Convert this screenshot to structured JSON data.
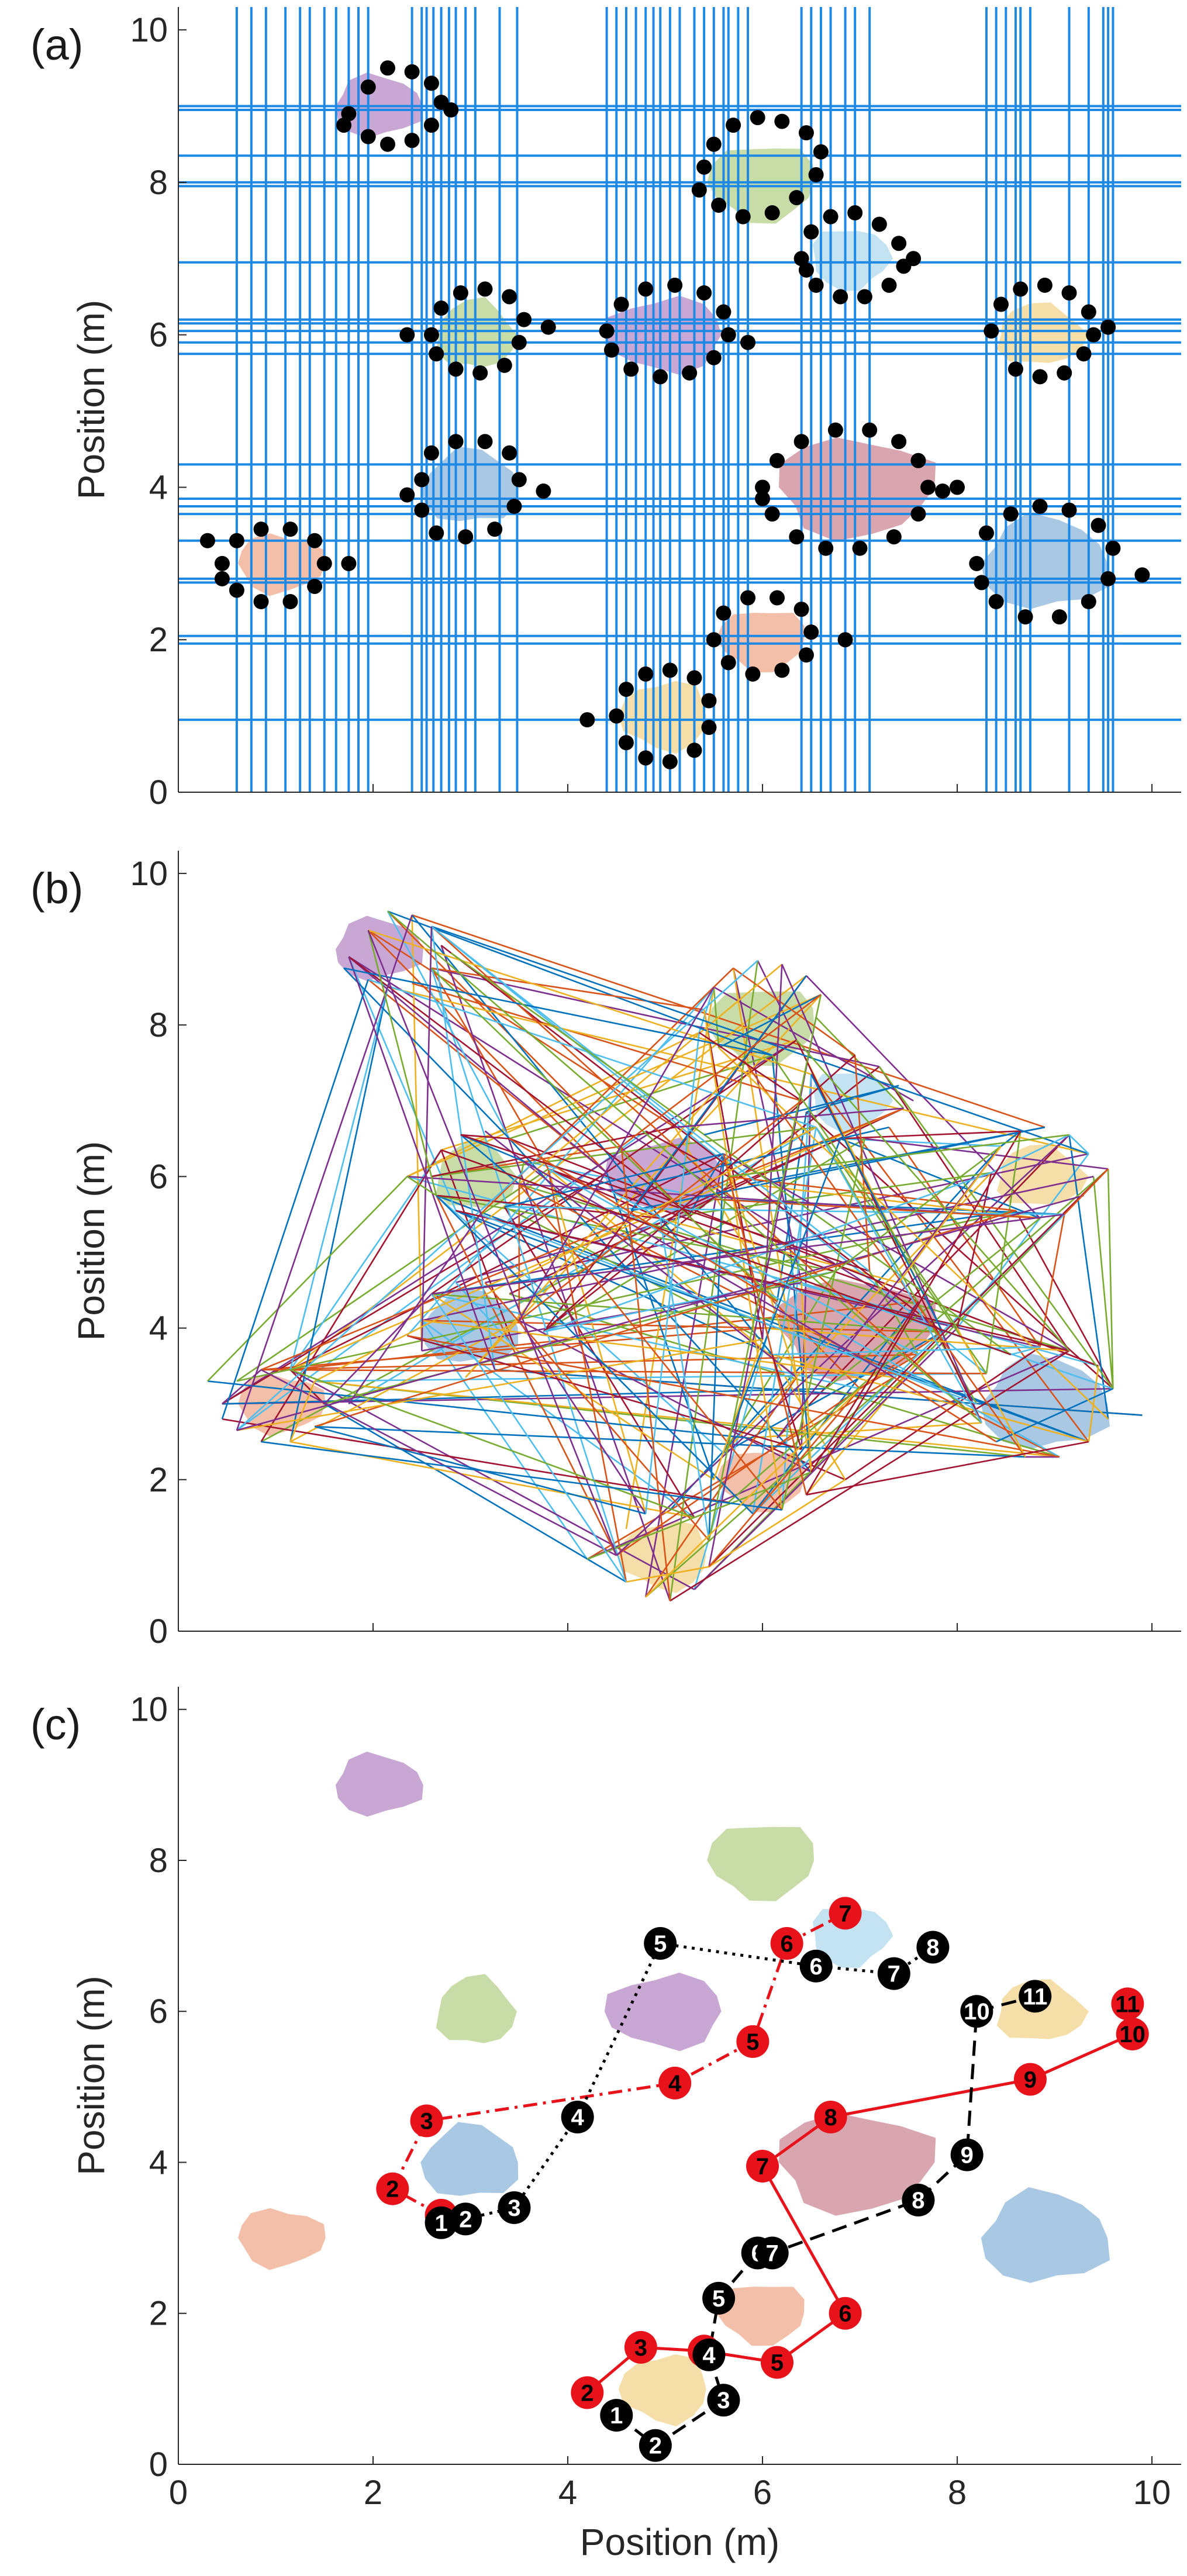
{
  "chart_data": [
    {
      "type": "scatter",
      "panel_label": "(a)",
      "xlabel": "",
      "ylabel": "Position (m)",
      "xlim": [
        0,
        10.3
      ],
      "ylim": [
        0,
        10.3
      ],
      "xticks": [
        "0",
        "2",
        "4",
        "6",
        "8",
        "10"
      ],
      "yticks": [
        "0",
        "2",
        "4",
        "6",
        "8",
        "10"
      ],
      "show_xtick_labels": false,
      "obstacles": [
        {
          "cx": 2.05,
          "cy": 9.0,
          "rx": 0.45,
          "ry": 0.4,
          "color": "#c9a7d4"
        },
        {
          "cx": 6.0,
          "cy": 8.0,
          "rx": 0.55,
          "ry": 0.5,
          "color": "#c8dca8"
        },
        {
          "cx": 6.9,
          "cy": 7.0,
          "rx": 0.4,
          "ry": 0.4,
          "color": "#c3e2f2"
        },
        {
          "cx": 3.05,
          "cy": 6.0,
          "rx": 0.4,
          "ry": 0.45,
          "color": "#c8dca8"
        },
        {
          "cx": 5.0,
          "cy": 6.0,
          "rx": 0.6,
          "ry": 0.48,
          "color": "#c9a7d4"
        },
        {
          "cx": 8.85,
          "cy": 6.0,
          "rx": 0.45,
          "ry": 0.4,
          "color": "#f6dea8"
        },
        {
          "cx": 3.0,
          "cy": 4.0,
          "rx": 0.5,
          "ry": 0.48,
          "color": "#a8c8e4"
        },
        {
          "cx": 6.95,
          "cy": 4.0,
          "rx": 0.8,
          "ry": 0.65,
          "color": "#d9a6b0"
        },
        {
          "cx": 1.05,
          "cy": 3.0,
          "rx": 0.45,
          "ry": 0.38,
          "color": "#f3bfa9"
        },
        {
          "cx": 8.9,
          "cy": 3.0,
          "rx": 0.65,
          "ry": 0.6,
          "color": "#a8c8e4"
        },
        {
          "cx": 6.0,
          "cy": 2.0,
          "rx": 0.45,
          "ry": 0.4,
          "color": "#f3bfa9"
        },
        {
          "cx": 5.0,
          "cy": 1.0,
          "rx": 0.45,
          "ry": 0.45,
          "color": "#f6dea8"
        }
      ],
      "grid_lines_x": [
        0.6,
        0.75,
        0.9,
        1.1,
        1.25,
        1.35,
        1.5,
        1.62,
        1.75,
        1.85,
        1.95,
        2.4,
        2.5,
        2.55,
        2.62,
        2.7,
        2.78,
        2.85,
        2.95,
        3.05,
        3.3,
        3.48,
        4.4,
        4.5,
        4.6,
        4.7,
        4.8,
        4.88,
        4.95,
        5.05,
        5.15,
        5.3,
        5.4,
        5.5,
        5.6,
        5.65,
        5.75,
        5.85,
        6.4,
        6.5,
        6.6,
        6.7,
        6.85,
        6.95,
        7.1,
        8.3,
        8.4,
        8.5,
        8.6,
        8.65,
        8.75,
        9.15,
        9.35,
        9.5,
        9.55,
        9.6
      ],
      "grid_lines_y": [
        0.95,
        1.95,
        2.05,
        2.75,
        2.8,
        3.3,
        3.65,
        3.75,
        3.85,
        4.3,
        5.75,
        5.9,
        6.05,
        6.15,
        6.2,
        6.95,
        7.95,
        8.0,
        8.35,
        8.95,
        9.0
      ],
      "sample_points": [
        [
          1.75,
          8.9
        ],
        [
          1.95,
          9.25
        ],
        [
          2.15,
          9.5
        ],
        [
          2.4,
          9.45
        ],
        [
          2.6,
          9.3
        ],
        [
          2.7,
          9.05
        ],
        [
          2.6,
          8.75
        ],
        [
          2.4,
          8.55
        ],
        [
          2.15,
          8.5
        ],
        [
          1.95,
          8.6
        ],
        [
          1.7,
          8.75
        ],
        [
          2.8,
          8.95
        ],
        [
          5.4,
          8.2
        ],
        [
          5.5,
          8.5
        ],
        [
          5.7,
          8.75
        ],
        [
          5.95,
          8.85
        ],
        [
          6.2,
          8.8
        ],
        [
          6.45,
          8.65
        ],
        [
          6.6,
          8.4
        ],
        [
          6.55,
          8.1
        ],
        [
          6.35,
          7.8
        ],
        [
          6.1,
          7.6
        ],
        [
          5.8,
          7.55
        ],
        [
          5.55,
          7.7
        ],
        [
          5.35,
          7.9
        ],
        [
          6.4,
          7.0
        ],
        [
          6.5,
          7.35
        ],
        [
          6.7,
          7.55
        ],
        [
          6.95,
          7.6
        ],
        [
          7.2,
          7.45
        ],
        [
          7.4,
          7.2
        ],
        [
          7.45,
          6.9
        ],
        [
          7.3,
          6.65
        ],
        [
          7.05,
          6.5
        ],
        [
          6.8,
          6.5
        ],
        [
          6.55,
          6.65
        ],
        [
          6.45,
          6.85
        ],
        [
          7.55,
          7.0
        ],
        [
          2.6,
          6.0
        ],
        [
          2.7,
          6.35
        ],
        [
          2.9,
          6.55
        ],
        [
          3.15,
          6.6
        ],
        [
          3.4,
          6.5
        ],
        [
          3.55,
          6.2
        ],
        [
          3.5,
          5.9
        ],
        [
          3.35,
          5.6
        ],
        [
          3.1,
          5.5
        ],
        [
          2.85,
          5.55
        ],
        [
          2.65,
          5.75
        ],
        [
          2.35,
          6.0
        ],
        [
          4.4,
          6.05
        ],
        [
          4.55,
          6.4
        ],
        [
          4.8,
          6.6
        ],
        [
          5.1,
          6.65
        ],
        [
          5.4,
          6.55
        ],
        [
          5.6,
          6.3
        ],
        [
          5.65,
          6.0
        ],
        [
          5.5,
          5.7
        ],
        [
          5.25,
          5.5
        ],
        [
          4.95,
          5.45
        ],
        [
          4.65,
          5.55
        ],
        [
          4.45,
          5.8
        ],
        [
          3.8,
          6.1
        ],
        [
          5.85,
          5.9
        ],
        [
          8.35,
          6.05
        ],
        [
          8.45,
          6.4
        ],
        [
          8.65,
          6.6
        ],
        [
          8.9,
          6.65
        ],
        [
          9.15,
          6.55
        ],
        [
          9.35,
          6.3
        ],
        [
          9.4,
          6.0
        ],
        [
          9.3,
          5.75
        ],
        [
          9.1,
          5.5
        ],
        [
          8.85,
          5.45
        ],
        [
          8.6,
          5.55
        ],
        [
          9.55,
          6.1
        ],
        [
          2.5,
          4.1
        ],
        [
          2.6,
          4.45
        ],
        [
          2.85,
          4.6
        ],
        [
          3.15,
          4.6
        ],
        [
          3.4,
          4.45
        ],
        [
          3.5,
          4.1
        ],
        [
          3.45,
          3.75
        ],
        [
          3.25,
          3.45
        ],
        [
          2.95,
          3.35
        ],
        [
          2.65,
          3.4
        ],
        [
          2.5,
          3.7
        ],
        [
          2.35,
          3.9
        ],
        [
          3.75,
          3.95
        ],
        [
          6.0,
          4.0
        ],
        [
          6.15,
          4.35
        ],
        [
          6.4,
          4.6
        ],
        [
          6.75,
          4.75
        ],
        [
          7.1,
          4.75
        ],
        [
          7.4,
          4.6
        ],
        [
          7.6,
          4.35
        ],
        [
          7.7,
          4.0
        ],
        [
          7.6,
          3.65
        ],
        [
          7.35,
          3.35
        ],
        [
          7.0,
          3.2
        ],
        [
          6.65,
          3.2
        ],
        [
          6.35,
          3.35
        ],
        [
          6.1,
          3.65
        ],
        [
          6.0,
          3.85
        ],
        [
          7.85,
          3.95
        ],
        [
          8.0,
          4.0
        ],
        [
          0.45,
          3.0
        ],
        [
          0.6,
          3.3
        ],
        [
          0.85,
          3.45
        ],
        [
          1.15,
          3.45
        ],
        [
          1.4,
          3.3
        ],
        [
          1.5,
          3.0
        ],
        [
          1.4,
          2.7
        ],
        [
          1.15,
          2.5
        ],
        [
          0.85,
          2.5
        ],
        [
          0.6,
          2.65
        ],
        [
          0.45,
          2.8
        ],
        [
          1.75,
          3.0
        ],
        [
          0.3,
          3.3
        ],
        [
          8.2,
          3.0
        ],
        [
          8.3,
          3.4
        ],
        [
          8.55,
          3.65
        ],
        [
          8.85,
          3.75
        ],
        [
          9.15,
          3.7
        ],
        [
          9.45,
          3.5
        ],
        [
          9.6,
          3.2
        ],
        [
          9.55,
          2.8
        ],
        [
          9.35,
          2.5
        ],
        [
          9.05,
          2.3
        ],
        [
          8.7,
          2.3
        ],
        [
          8.4,
          2.5
        ],
        [
          8.25,
          2.75
        ],
        [
          9.9,
          2.85
        ],
        [
          5.5,
          2.0
        ],
        [
          5.6,
          2.35
        ],
        [
          5.85,
          2.55
        ],
        [
          6.15,
          2.55
        ],
        [
          6.4,
          2.4
        ],
        [
          6.5,
          2.1
        ],
        [
          6.45,
          1.8
        ],
        [
          6.2,
          1.6
        ],
        [
          5.9,
          1.55
        ],
        [
          5.65,
          1.7
        ],
        [
          6.85,
          2.0
        ],
        [
          4.5,
          1.0
        ],
        [
          4.6,
          1.35
        ],
        [
          4.8,
          1.55
        ],
        [
          5.05,
          1.6
        ],
        [
          5.3,
          1.5
        ],
        [
          5.45,
          1.2
        ],
        [
          5.45,
          0.85
        ],
        [
          5.3,
          0.55
        ],
        [
          5.05,
          0.4
        ],
        [
          4.8,
          0.45
        ],
        [
          4.6,
          0.65
        ],
        [
          4.2,
          0.95
        ]
      ]
    },
    {
      "type": "line",
      "panel_label": "(b)",
      "xlabel": "",
      "ylabel": "Position (m)",
      "xlim": [
        0,
        10.3
      ],
      "ylim": [
        0,
        10.3
      ],
      "xticks": [
        "0",
        "2",
        "4",
        "6",
        "8",
        "10"
      ],
      "yticks": [
        "0",
        "2",
        "4",
        "6",
        "8",
        "10"
      ],
      "show_xtick_labels": false,
      "random_segment_count": 320,
      "line_colors": [
        "#0072bd",
        "#d95319",
        "#edb120",
        "#7e2f8e",
        "#77ac30",
        "#4dbeee",
        "#a2142f"
      ]
    },
    {
      "type": "line",
      "panel_label": "(c)",
      "xlabel": "Position (m)",
      "ylabel": "Position (m)",
      "xlim": [
        0,
        10.3
      ],
      "ylim": [
        0,
        10.3
      ],
      "xticks": [
        "0",
        "2",
        "4",
        "6",
        "8",
        "10"
      ],
      "yticks": [
        "0",
        "2",
        "4",
        "6",
        "8",
        "10"
      ],
      "show_xtick_labels": true,
      "series": [
        {
          "color": "#e8121b",
          "style": "dashdot",
          "marker_text_color": "#000000",
          "points": [
            [
              2.7,
              3.3
            ],
            [
              2.2,
              3.65
            ],
            [
              2.55,
              4.55
            ],
            [
              5.1,
              5.05
            ],
            [
              5.9,
              5.6
            ],
            [
              6.25,
              6.9
            ],
            [
              6.85,
              7.3
            ]
          ],
          "labels": [
            "1",
            "2",
            "3",
            "4",
            "5",
            "6",
            "7"
          ]
        },
        {
          "color": "#000000",
          "style": "dotted",
          "marker_text_color": "#ffffff",
          "points": [
            [
              2.7,
              3.2
            ],
            [
              2.95,
              3.25
            ],
            [
              3.45,
              3.4
            ],
            [
              4.1,
              4.6
            ],
            [
              4.95,
              6.9
            ],
            [
              6.55,
              6.6
            ],
            [
              7.35,
              6.5
            ],
            [
              7.75,
              6.85
            ]
          ],
          "labels": [
            "1",
            "2",
            "3",
            "4",
            "5",
            "6",
            "7",
            "8"
          ]
        },
        {
          "color": "#e8121b",
          "style": "solid",
          "marker_text_color": "#000000",
          "points": [
            [
              4.2,
              0.95
            ],
            [
              4.75,
              1.55
            ],
            [
              5.4,
              1.5
            ],
            [
              6.15,
              1.35
            ],
            [
              6.85,
              2.0
            ],
            [
              6.0,
              3.95
            ],
            [
              6.7,
              4.6
            ],
            [
              8.75,
              5.1
            ],
            [
              9.8,
              5.7
            ],
            [
              9.75,
              6.1
            ]
          ],
          "labels": [
            "2",
            "3",
            "4",
            "5",
            "6",
            "7",
            "8",
            "9",
            "10",
            "11"
          ]
        },
        {
          "color": "#000000",
          "style": "dashed",
          "marker_text_color": "#ffffff",
          "points": [
            [
              4.5,
              0.65
            ],
            [
              4.9,
              0.25
            ],
            [
              5.6,
              0.85
            ],
            [
              5.45,
              1.45
            ],
            [
              5.55,
              2.2
            ],
            [
              5.95,
              2.8
            ],
            [
              6.1,
              2.8
            ],
            [
              7.6,
              3.5
            ],
            [
              8.1,
              4.1
            ],
            [
              8.2,
              6.0
            ],
            [
              8.8,
              6.2
            ]
          ],
          "labels": [
            "1",
            "2",
            "3",
            "4",
            "5",
            "6",
            "7",
            "8",
            "9",
            "10",
            "11"
          ]
        }
      ]
    }
  ]
}
